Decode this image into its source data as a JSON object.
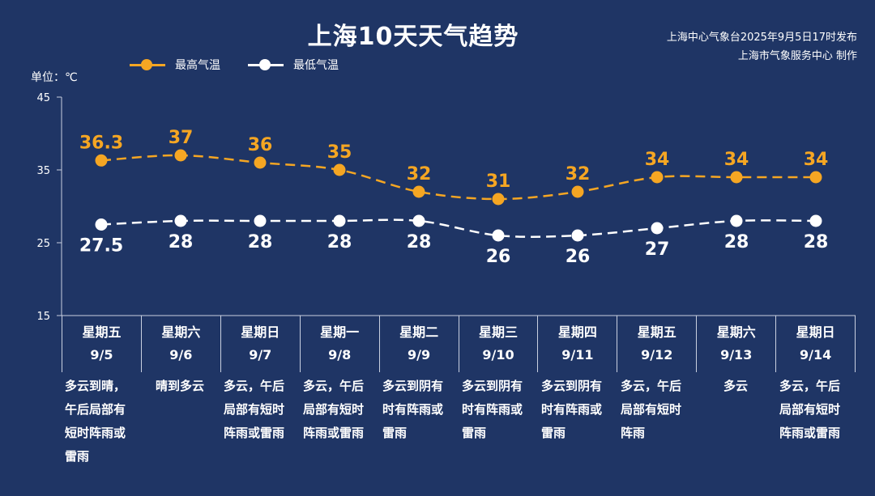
{
  "title": "上海10天天气趋势",
  "publisher": {
    "line1": "上海中心气象台2025年9月5日17时发布",
    "line2": "上海市气象服务中心 制作"
  },
  "unit_label": "单位：℃",
  "legend": {
    "high_label": "最高气温",
    "low_label": "最低气温"
  },
  "colors": {
    "background": "#1f3565",
    "high": "#f5a623",
    "low": "#ffffff"
  },
  "days": [
    {
      "weekday": "星期五",
      "date": "9/5",
      "weather": "多云到晴，午后局部有短时阵雨或雷雨"
    },
    {
      "weekday": "星期六",
      "date": "9/6",
      "weather": "晴到多云"
    },
    {
      "weekday": "星期日",
      "date": "9/7",
      "weather": "多云，午后局部有短时阵雨或雷雨"
    },
    {
      "weekday": "星期一",
      "date": "9/8",
      "weather": "多云，午后局部有短时阵雨或雷雨"
    },
    {
      "weekday": "星期二",
      "date": "9/9",
      "weather": "多云到阴有时有阵雨或雷雨"
    },
    {
      "weekday": "星期三",
      "date": "9/10",
      "weather": "多云到阴有时有阵雨或雷雨"
    },
    {
      "weekday": "星期四",
      "date": "9/11",
      "weather": "多云到阴有时有阵雨或雷雨"
    },
    {
      "weekday": "星期五",
      "date": "9/12",
      "weather": "多云，午后局部有短时阵雨"
    },
    {
      "weekday": "星期六",
      "date": "9/13",
      "weather": "多云"
    },
    {
      "weekday": "星期日",
      "date": "9/14",
      "weather": "多云，午后局部有短时阵雨或雷雨"
    }
  ],
  "chart_data": {
    "type": "line",
    "title": "上海10天天气趋势",
    "ylabel": "单位：℃",
    "categories": [
      "9/5",
      "9/6",
      "9/7",
      "9/8",
      "9/9",
      "9/10",
      "9/11",
      "9/12",
      "9/13",
      "9/14"
    ],
    "series": [
      {
        "name": "最高气温",
        "values": [
          36.3,
          37,
          36,
          35,
          32,
          31,
          32,
          34,
          34,
          34
        ],
        "labels": [
          "36.3",
          "37",
          "36",
          "35",
          "32",
          "31",
          "32",
          "34",
          "34",
          "34"
        ]
      },
      {
        "name": "最低气温",
        "values": [
          27.5,
          28,
          28,
          28,
          28,
          26,
          26,
          27,
          28,
          28
        ],
        "labels": [
          "27.5",
          "28",
          "28",
          "28",
          "28",
          "26",
          "26",
          "27",
          "28",
          "28"
        ]
      }
    ],
    "ylim": [
      15,
      45
    ],
    "yticks": [
      "15",
      "25",
      "35",
      "45"
    ],
    "line_style": "dashed",
    "legend_position": "top-left",
    "grid": false
  }
}
